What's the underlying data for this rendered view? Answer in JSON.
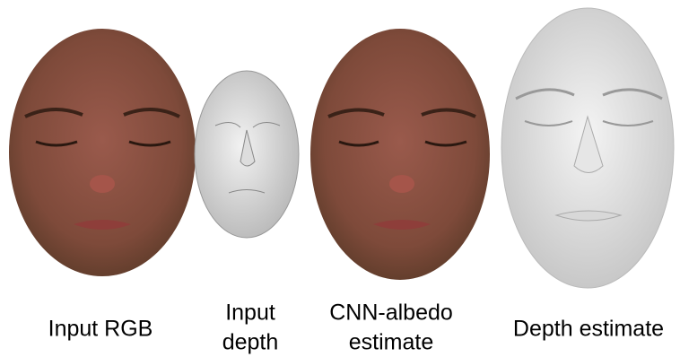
{
  "panels": [
    {
      "caption_lines": [
        "Input RGB"
      ]
    },
    {
      "caption_lines": [
        "Input",
        "depth"
      ]
    },
    {
      "caption_lines": [
        "CNN-albedo",
        "estimate"
      ]
    },
    {
      "caption_lines": [
        "Depth estimate"
      ]
    }
  ]
}
